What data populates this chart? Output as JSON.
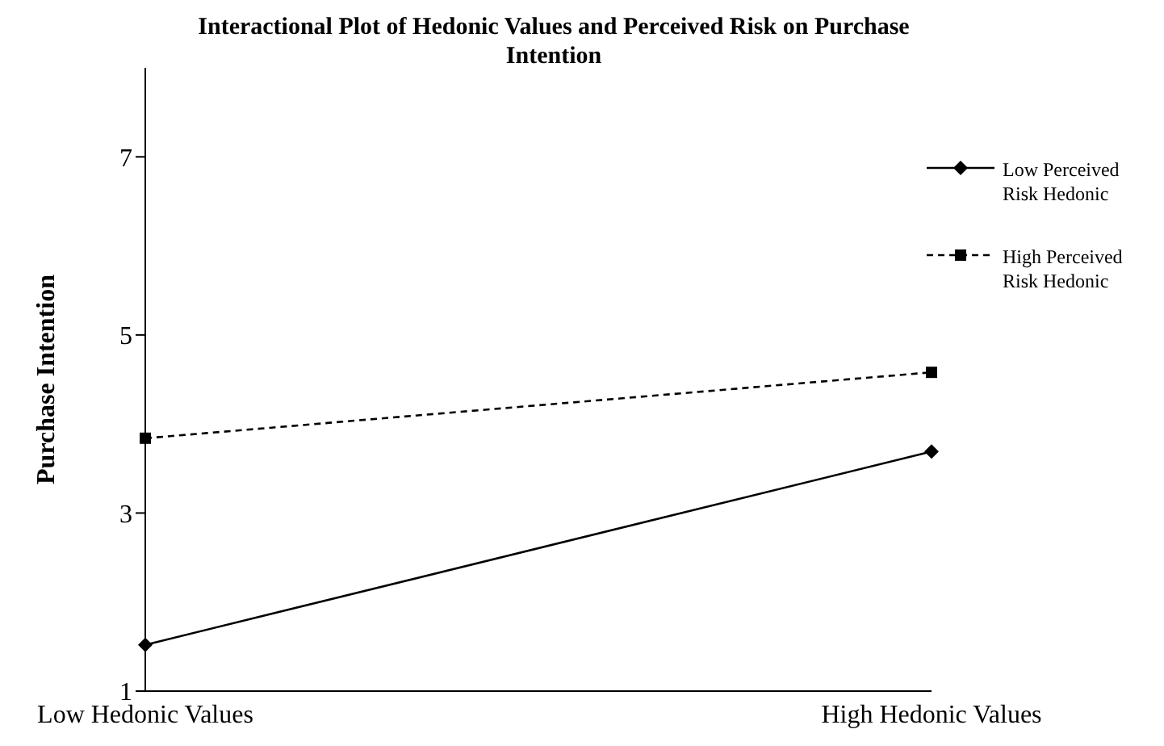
{
  "chart_data": {
    "type": "line",
    "title": "Interactional Plot of Hedonic Values and Perceived Risk on Purchase Intention",
    "ylabel": "Purchase Intention",
    "categories": [
      "Low Hedonic Values",
      "High Hedonic Values"
    ],
    "series": [
      {
        "name": "Low Perceived Risk Hedonic",
        "color": "#000000",
        "values": [
          1.52,
          3.69
        ],
        "marker": "diamond",
        "line_style": "solid"
      },
      {
        "name": "High Perceived Risk Hedonic",
        "color": "#000000",
        "values": [
          3.84,
          4.58
        ],
        "marker": "square",
        "line_style": "dashed"
      }
    ],
    "ylim": [
      1,
      8
    ],
    "yticks": [
      1,
      3,
      5,
      7
    ],
    "grid": false,
    "legend": "top right"
  }
}
